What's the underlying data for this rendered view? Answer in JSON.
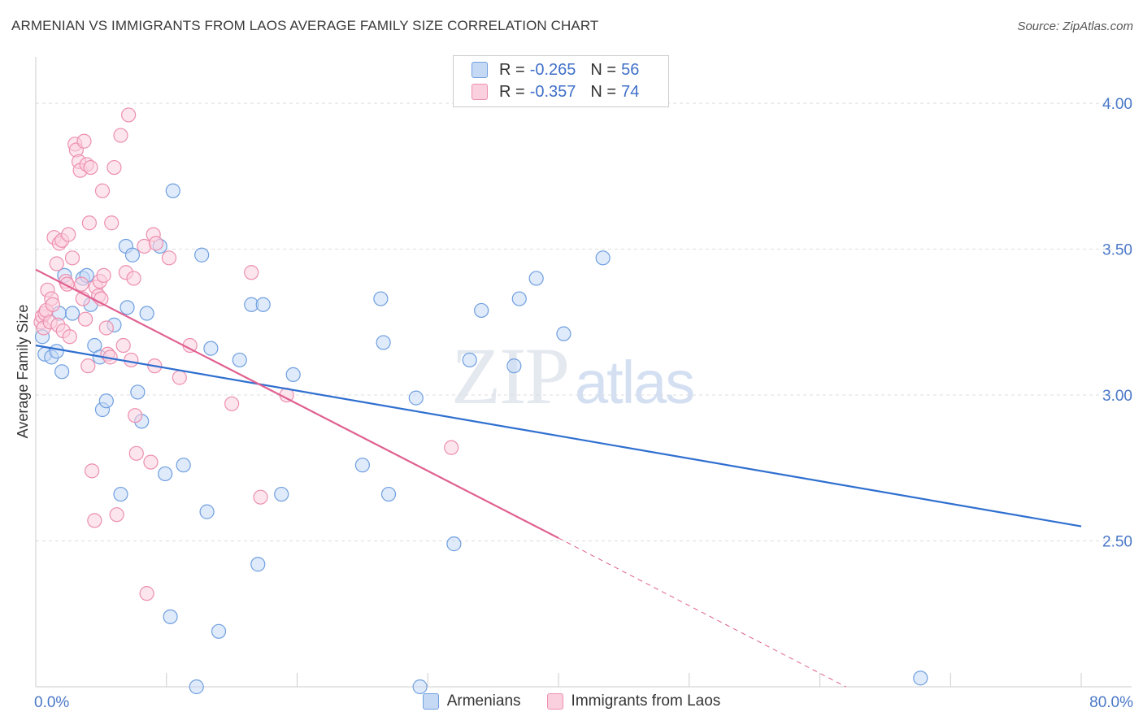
{
  "header": {
    "title": "ARMENIAN VS IMMIGRANTS FROM LAOS AVERAGE FAMILY SIZE CORRELATION CHART",
    "source": "Source: ZipAtlas.com"
  },
  "watermark": {
    "zip": "ZIP",
    "atlas": "atlas"
  },
  "legend": {
    "rows": [
      {
        "r_label": "R =",
        "r_value": "-0.265",
        "n_label": "N =",
        "n_value": "56"
      },
      {
        "r_label": "R =",
        "r_value": "-0.357",
        "n_label": "N =",
        "n_value": "74"
      }
    ]
  },
  "bottom_legend": {
    "armenians": "Armenians",
    "laos": "Immigrants from Laos"
  },
  "colors": {
    "armenians_fill": "#c5d9f5",
    "armenians_stroke": "#6f9fe0",
    "armenians_line": "#2f6fd0",
    "laos_fill": "#fbd0de",
    "laos_stroke": "#ec8fae",
    "laos_line": "#e06090",
    "grid": "#dddddd",
    "tick_text": "#4a78c8"
  },
  "chart_data": {
    "type": "scatter",
    "ylabel": "Average Family Size",
    "xlabel": "",
    "xlim": [
      0,
      80
    ],
    "ylim": [
      2.0,
      4.12
    ],
    "x_tick_labels": [
      {
        "value": 0,
        "label": "0.0%"
      },
      {
        "value": 80,
        "label": "80.0%"
      }
    ],
    "y_ticks": [
      {
        "value": 2.5,
        "label": "2.50"
      },
      {
        "value": 3.0,
        "label": "3.00"
      },
      {
        "value": 3.5,
        "label": "3.50"
      },
      {
        "value": 4.0,
        "label": "4.00"
      }
    ],
    "series": [
      {
        "name": "Armenians",
        "points": [
          [
            0.5,
            3.2
          ],
          [
            0.7,
            3.14
          ],
          [
            1.2,
            3.13
          ],
          [
            1.6,
            3.15
          ],
          [
            1.8,
            3.28
          ],
          [
            2.0,
            3.08
          ],
          [
            2.2,
            3.41
          ],
          [
            2.8,
            3.28
          ],
          [
            3.6,
            3.4
          ],
          [
            3.9,
            3.41
          ],
          [
            4.2,
            3.31
          ],
          [
            4.5,
            3.17
          ],
          [
            4.9,
            3.13
          ],
          [
            5.1,
            2.95
          ],
          [
            5.4,
            2.98
          ],
          [
            6.0,
            3.24
          ],
          [
            6.5,
            2.66
          ],
          [
            6.9,
            3.51
          ],
          [
            7.0,
            3.3
          ],
          [
            7.4,
            3.48
          ],
          [
            7.8,
            3.01
          ],
          [
            8.1,
            2.91
          ],
          [
            8.5,
            3.28
          ],
          [
            9.5,
            3.51
          ],
          [
            9.9,
            2.73
          ],
          [
            10.3,
            2.24
          ],
          [
            10.5,
            3.7
          ],
          [
            11.3,
            2.76
          ],
          [
            12.3,
            2.0
          ],
          [
            12.7,
            3.48
          ],
          [
            13.1,
            2.6
          ],
          [
            13.4,
            3.16
          ],
          [
            14.0,
            2.19
          ],
          [
            15.6,
            3.12
          ],
          [
            16.5,
            3.31
          ],
          [
            17.0,
            2.42
          ],
          [
            17.4,
            3.31
          ],
          [
            18.8,
            2.66
          ],
          [
            19.7,
            3.07
          ],
          [
            25.0,
            2.76
          ],
          [
            26.4,
            3.33
          ],
          [
            26.6,
            3.18
          ],
          [
            27.0,
            2.66
          ],
          [
            29.1,
            2.99
          ],
          [
            29.4,
            2.0
          ],
          [
            32.0,
            2.49
          ],
          [
            33.2,
            3.12
          ],
          [
            34.1,
            3.29
          ],
          [
            36.6,
            3.1
          ],
          [
            37.0,
            3.33
          ],
          [
            38.3,
            3.4
          ],
          [
            40.4,
            3.21
          ],
          [
            43.4,
            3.47
          ],
          [
            67.7,
            2.03
          ]
        ],
        "trend": {
          "x1": 0,
          "y1": 3.17,
          "x2": 80,
          "y2": 2.55
        }
      },
      {
        "name": "Immigrants from Laos",
        "points": [
          [
            0.4,
            3.25
          ],
          [
            0.5,
            3.27
          ],
          [
            0.6,
            3.23
          ],
          [
            0.7,
            3.28
          ],
          [
            0.8,
            3.29
          ],
          [
            0.9,
            3.36
          ],
          [
            1.1,
            3.25
          ],
          [
            1.2,
            3.33
          ],
          [
            1.3,
            3.31
          ],
          [
            1.4,
            3.54
          ],
          [
            1.6,
            3.45
          ],
          [
            1.7,
            3.24
          ],
          [
            1.8,
            3.52
          ],
          [
            2.0,
            3.53
          ],
          [
            2.1,
            3.22
          ],
          [
            2.3,
            3.39
          ],
          [
            2.4,
            3.38
          ],
          [
            2.5,
            3.55
          ],
          [
            2.6,
            3.2
          ],
          [
            2.8,
            3.47
          ],
          [
            3.0,
            3.86
          ],
          [
            3.1,
            3.84
          ],
          [
            3.3,
            3.8
          ],
          [
            3.4,
            3.77
          ],
          [
            3.5,
            3.38
          ],
          [
            3.6,
            3.33
          ],
          [
            3.7,
            3.87
          ],
          [
            3.8,
            3.26
          ],
          [
            3.9,
            3.79
          ],
          [
            4.0,
            3.1
          ],
          [
            4.1,
            3.59
          ],
          [
            4.2,
            3.78
          ],
          [
            4.3,
            2.74
          ],
          [
            4.5,
            2.57
          ],
          [
            4.6,
            3.37
          ],
          [
            4.8,
            3.34
          ],
          [
            4.9,
            3.39
          ],
          [
            5.0,
            3.33
          ],
          [
            5.1,
            3.7
          ],
          [
            5.2,
            3.41
          ],
          [
            5.4,
            3.23
          ],
          [
            5.5,
            3.14
          ],
          [
            5.7,
            3.13
          ],
          [
            5.8,
            3.59
          ],
          [
            6.0,
            3.78
          ],
          [
            6.2,
            2.59
          ],
          [
            6.5,
            3.89
          ],
          [
            6.7,
            3.17
          ],
          [
            6.9,
            3.42
          ],
          [
            7.1,
            3.96
          ],
          [
            7.3,
            3.12
          ],
          [
            7.5,
            3.4
          ],
          [
            7.6,
            2.93
          ],
          [
            7.7,
            2.8
          ],
          [
            8.3,
            3.51
          ],
          [
            8.5,
            2.32
          ],
          [
            8.8,
            2.77
          ],
          [
            9.0,
            3.55
          ],
          [
            9.1,
            3.1
          ],
          [
            9.2,
            3.52
          ],
          [
            10.2,
            3.47
          ],
          [
            11.0,
            3.06
          ],
          [
            11.8,
            3.17
          ],
          [
            15.0,
            2.97
          ],
          [
            16.5,
            3.42
          ],
          [
            17.2,
            2.65
          ],
          [
            19.2,
            3.0
          ],
          [
            31.8,
            2.82
          ]
        ],
        "trend": {
          "x1": 0,
          "y1": 3.43,
          "x2": 40,
          "y2": 2.51
        },
        "trend_extension": {
          "x1": 40,
          "y1": 2.51,
          "x2": 62,
          "y2": 2.0
        }
      }
    ]
  }
}
